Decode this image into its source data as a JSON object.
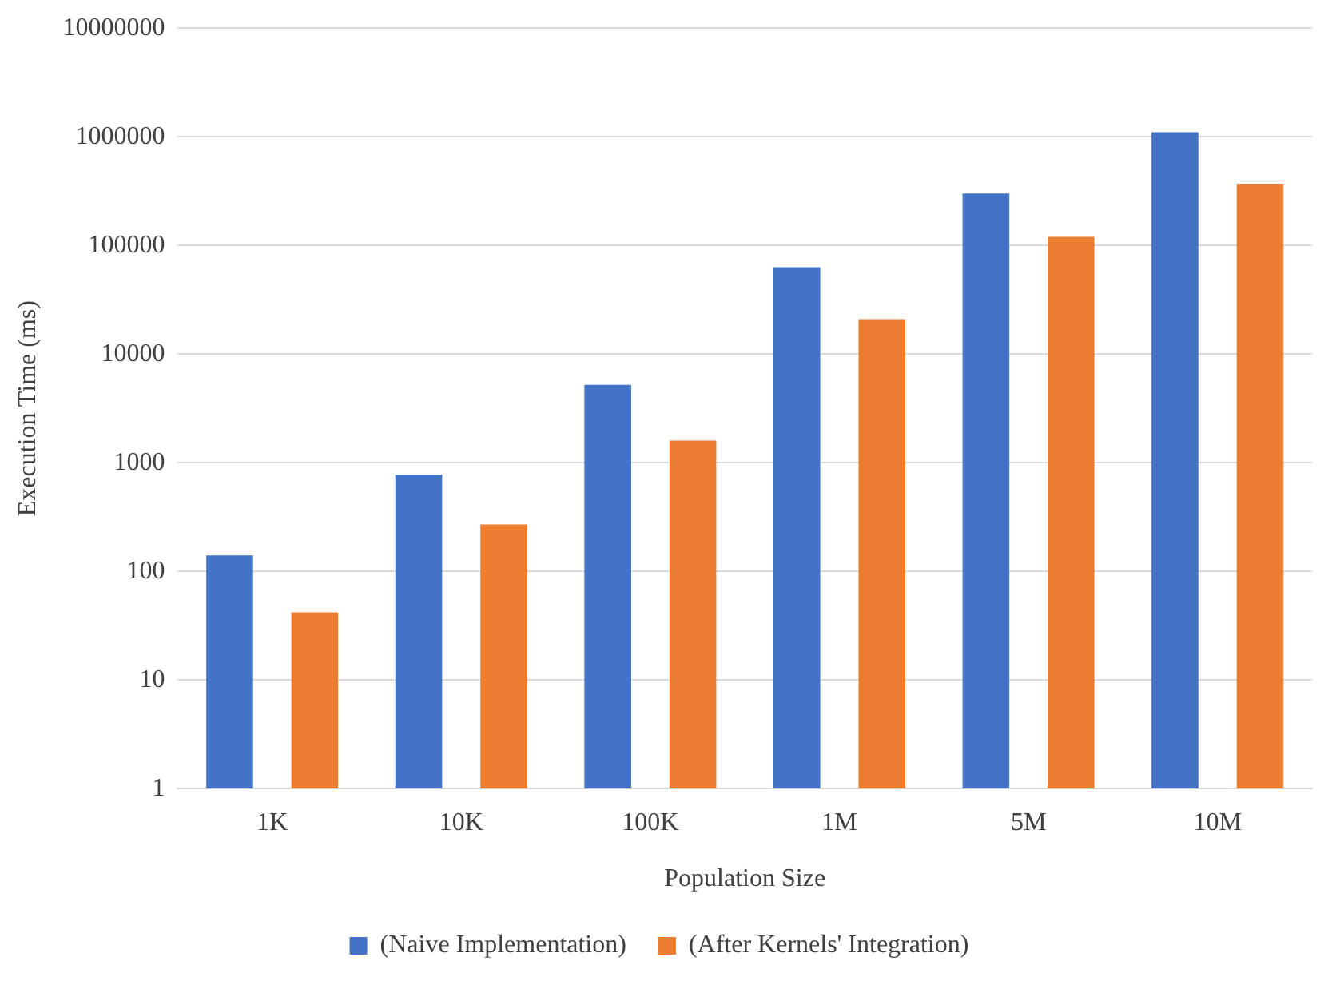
{
  "chart_data": {
    "type": "bar",
    "xlabel": "Population Size",
    "ylabel": "Execution Time (ms)",
    "categories": [
      "1K",
      "10K",
      "100K",
      "1M",
      "5M",
      "10M"
    ],
    "series": [
      {
        "name": "(Naive Implementation)",
        "color": "#4472c4",
        "values": [
          140,
          780,
          5200,
          63000,
          300000,
          1100000
        ]
      },
      {
        "name": "(After Kernels' Integration)",
        "color": "#ed7d31",
        "values": [
          42,
          270,
          1600,
          21000,
          120000,
          370000
        ]
      }
    ],
    "log": "y",
    "ylim": [
      1,
      10000000
    ],
    "yticks": [
      1,
      10,
      100,
      1000,
      10000,
      100000,
      1000000,
      10000000
    ],
    "grid": "y",
    "legend": "bottom"
  }
}
